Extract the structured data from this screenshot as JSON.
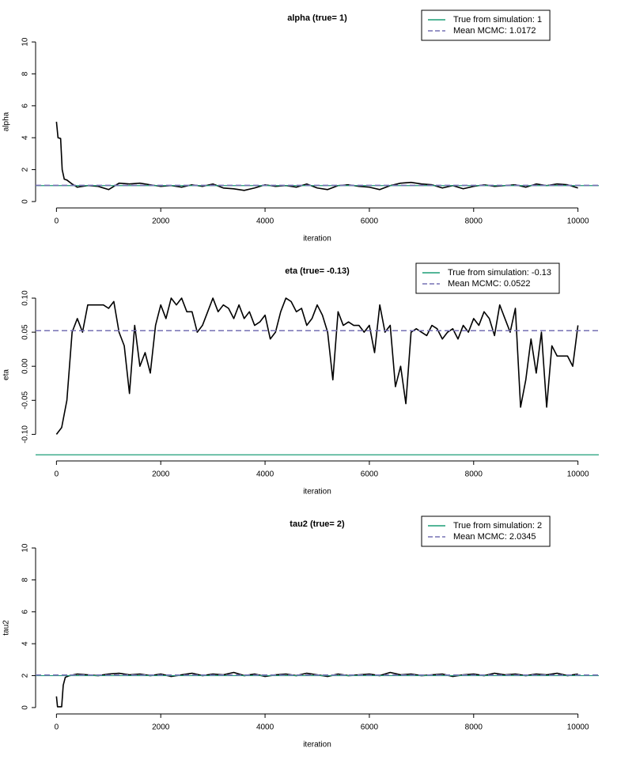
{
  "chart_data": [
    {
      "type": "line",
      "title": "alpha (true= 1)",
      "xlabel": "iteration",
      "ylabel": "alpha",
      "color": "#000000",
      "legend": "topright",
      "x": [
        0,
        30,
        80,
        110,
        150,
        200,
        300,
        400,
        600,
        800,
        1000,
        1200,
        1400,
        1600,
        1800,
        2000,
        2200,
        2400,
        2600,
        2800,
        3000,
        3200,
        3400,
        3600,
        3800,
        4000,
        4200,
        4400,
        4600,
        4800,
        5000,
        5200,
        5400,
        5600,
        5800,
        6000,
        6200,
        6400,
        6600,
        6800,
        7000,
        7200,
        7400,
        7600,
        7800,
        8000,
        8200,
        8400,
        8600,
        8800,
        9000,
        9200,
        9400,
        9600,
        9800,
        10000
      ],
      "values": [
        5.0,
        4.0,
        3.95,
        2.0,
        1.4,
        1.35,
        1.1,
        0.9,
        1.0,
        0.95,
        0.75,
        1.15,
        1.1,
        1.15,
        1.05,
        0.95,
        1.0,
        0.9,
        1.05,
        0.95,
        1.1,
        0.85,
        0.8,
        0.7,
        0.85,
        1.05,
        0.95,
        1.0,
        0.9,
        1.1,
        0.85,
        0.75,
        1.0,
        1.05,
        0.95,
        0.9,
        0.75,
        1.0,
        1.15,
        1.2,
        1.1,
        1.05,
        0.85,
        1.0,
        0.8,
        0.95,
        1.05,
        0.95,
        1.0,
        1.05,
        0.9,
        1.1,
        1.0,
        1.1,
        1.05,
        0.85
      ],
      "xlim": [
        -400,
        10400
      ],
      "xticks": [
        0,
        2000,
        4000,
        6000,
        8000,
        10000
      ],
      "ylim": [
        -0.4,
        10.4
      ],
      "yticks": [
        0,
        2,
        4,
        6,
        8,
        10
      ],
      "hlines": [
        {
          "name": "True from simulation: 1",
          "value": 1,
          "color": "#1b9e77",
          "dash": false
        },
        {
          "name": "Mean MCMC: 1.0172",
          "value": 1.0172,
          "color": "#7570b3",
          "dash": true
        }
      ]
    },
    {
      "type": "line",
      "title": "eta (true= -0.13)",
      "xlabel": "iteration",
      "ylabel": "eta",
      "color": "#000000",
      "legend": "topright",
      "x": [
        0,
        100,
        200,
        300,
        400,
        500,
        600,
        700,
        800,
        900,
        1000,
        1100,
        1200,
        1300,
        1400,
        1500,
        1600,
        1700,
        1800,
        1900,
        2000,
        2100,
        2200,
        2300,
        2400,
        2500,
        2600,
        2700,
        2800,
        2900,
        3000,
        3100,
        3200,
        3300,
        3400,
        3500,
        3600,
        3700,
        3800,
        3900,
        4000,
        4100,
        4200,
        4300,
        4400,
        4500,
        4600,
        4700,
        4800,
        4900,
        5000,
        5100,
        5200,
        5300,
        5400,
        5500,
        5600,
        5700,
        5800,
        5900,
        6000,
        6100,
        6200,
        6300,
        6400,
        6500,
        6600,
        6700,
        6800,
        6900,
        7000,
        7100,
        7200,
        7300,
        7400,
        7500,
        7600,
        7700,
        7800,
        7900,
        8000,
        8100,
        8200,
        8300,
        8400,
        8500,
        8600,
        8700,
        8800,
        8900,
        9000,
        9100,
        9200,
        9300,
        9400,
        9500,
        9600,
        9700,
        9800,
        9900,
        10000
      ],
      "values": [
        -0.1,
        -0.09,
        -0.05,
        0.05,
        0.07,
        0.05,
        0.09,
        0.09,
        0.09,
        0.09,
        0.085,
        0.095,
        0.05,
        0.03,
        -0.04,
        0.06,
        0.0,
        0.02,
        -0.01,
        0.06,
        0.09,
        0.07,
        0.1,
        0.09,
        0.1,
        0.08,
        0.08,
        0.05,
        0.06,
        0.08,
        0.1,
        0.08,
        0.09,
        0.085,
        0.07,
        0.09,
        0.07,
        0.08,
        0.06,
        0.065,
        0.075,
        0.04,
        0.05,
        0.08,
        0.1,
        0.095,
        0.08,
        0.085,
        0.06,
        0.07,
        0.09,
        0.075,
        0.05,
        -0.02,
        0.08,
        0.06,
        0.065,
        0.06,
        0.06,
        0.05,
        0.06,
        0.02,
        0.09,
        0.05,
        0.06,
        -0.03,
        0.0,
        -0.055,
        0.05,
        0.055,
        0.05,
        0.045,
        0.06,
        0.055,
        0.04,
        0.05,
        0.055,
        0.04,
        0.06,
        0.05,
        0.07,
        0.06,
        0.08,
        0.07,
        0.045,
        0.09,
        0.07,
        0.05,
        0.085,
        -0.06,
        -0.02,
        0.04,
        -0.01,
        0.05,
        -0.06,
        0.03,
        0.015,
        0.015,
        0.015,
        0.0,
        0.06
      ],
      "xlim": [
        -400,
        10400
      ],
      "xticks": [
        0,
        2000,
        4000,
        6000,
        8000,
        10000
      ],
      "ylim": [
        -0.139,
        0.114
      ],
      "yticks": [
        {
          "value": -0.1,
          "label": "-0.10"
        },
        -0.05,
        {
          "value": 0,
          "label": "0.00"
        },
        0.05,
        {
          "value": 0.1,
          "label": "0.10"
        }
      ],
      "hlines": [
        {
          "name": "True from simulation: -0.13",
          "value": -0.13,
          "color": "#1b9e77",
          "dash": false
        },
        {
          "name": "Mean MCMC: 0.0522",
          "value": 0.0522,
          "color": "#7570b3",
          "dash": true
        }
      ]
    },
    {
      "type": "line",
      "title": "tau2 (true= 2)",
      "xlabel": "iteration",
      "ylabel": "tau2",
      "color": "#000000",
      "legend": "topright",
      "x": [
        0,
        20,
        100,
        130,
        170,
        250,
        400,
        600,
        800,
        1000,
        1200,
        1400,
        1600,
        1800,
        2000,
        2200,
        2400,
        2600,
        2800,
        3000,
        3200,
        3400,
        3600,
        3800,
        4000,
        4200,
        4400,
        4600,
        4800,
        5000,
        5200,
        5400,
        5600,
        5800,
        6000,
        6200,
        6400,
        6600,
        6800,
        7000,
        7200,
        7400,
        7600,
        7800,
        8000,
        8200,
        8400,
        8600,
        8800,
        9000,
        9200,
        9400,
        9600,
        9800,
        10000
      ],
      "values": [
        0.7,
        0.05,
        0.05,
        1.4,
        1.9,
        2.0,
        2.1,
        2.05,
        2.0,
        2.1,
        2.15,
        2.05,
        2.1,
        2.0,
        2.1,
        1.95,
        2.05,
        2.15,
        2.0,
        2.1,
        2.05,
        2.2,
        2.0,
        2.1,
        1.95,
        2.05,
        2.1,
        2.0,
        2.15,
        2.05,
        1.95,
        2.1,
        2.0,
        2.05,
        2.1,
        2.0,
        2.2,
        2.05,
        2.1,
        2.0,
        2.05,
        2.1,
        1.95,
        2.05,
        2.1,
        2.0,
        2.15,
        2.05,
        2.1,
        2.0,
        2.1,
        2.05,
        2.15,
        2.0,
        2.1
      ],
      "xlim": [
        -400,
        10400
      ],
      "xticks": [
        0,
        2000,
        4000,
        6000,
        8000,
        10000
      ],
      "ylim": [
        -0.4,
        10.4
      ],
      "yticks": [
        0,
        2,
        4,
        6,
        8,
        10
      ],
      "hlines": [
        {
          "name": "True from simulation: 2",
          "value": 2,
          "color": "#1b9e77",
          "dash": false
        },
        {
          "name": "Mean MCMC: 2.0345",
          "value": 2.0345,
          "color": "#7570b3",
          "dash": true
        }
      ]
    }
  ]
}
